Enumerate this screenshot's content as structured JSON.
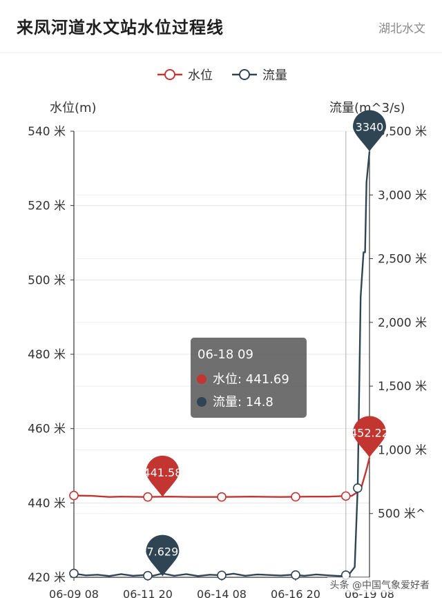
{
  "header": {
    "title": "来凤河道水文站水位过程线",
    "source": "湖北水文"
  },
  "watermark": "头条 @中国气象爱好者",
  "chart_data": {
    "type": "line",
    "legend": {
      "position": "top-center",
      "items": [
        "水位",
        "流量"
      ]
    },
    "y_left": {
      "name": "水位(m)",
      "range": [
        420,
        540
      ],
      "ticks": [
        420,
        440,
        460,
        480,
        500,
        520,
        540
      ],
      "tick_labels": [
        "420 米",
        "440 米",
        "460 米",
        "480 米",
        "500 米",
        "520 米",
        "540 米"
      ]
    },
    "y_right": {
      "name": "流量(m^3/s)",
      "range": [
        0,
        3500
      ],
      "ticks": [
        500,
        1000,
        1500,
        2000,
        2500,
        3000,
        3500
      ],
      "tick_labels": [
        "500 米^",
        "1,000 米",
        "1,500 米",
        "2,000 米",
        "2,500 米",
        "3,000 米",
        "3,500 米"
      ]
    },
    "x": {
      "tick_labels": [
        "06-09 08",
        "06-11 20",
        "06-14 08",
        "06-16 20",
        "06-19 08"
      ]
    },
    "series": [
      {
        "name": "水位",
        "color": "#c23531",
        "axis": "left",
        "points": [
          [
            0,
            442.0
          ],
          [
            0.6,
            441.9
          ],
          [
            1.2,
            441.6
          ],
          [
            1.6,
            441.7
          ],
          [
            2.4,
            441.6
          ],
          [
            3.2,
            441.7
          ],
          [
            4.0,
            441.6
          ],
          [
            5.0,
            441.6
          ],
          [
            6.0,
            441.7
          ],
          [
            7.0,
            441.6
          ],
          [
            8.0,
            441.7
          ],
          [
            8.6,
            441.7
          ],
          [
            9.0,
            441.8
          ],
          [
            9.4,
            441.9
          ],
          [
            9.7,
            443.5
          ],
          [
            9.9,
            449.0
          ],
          [
            10.0,
            452.2
          ]
        ],
        "markers_at": [
          0,
          2.5,
          5,
          7.5,
          9.2
        ]
      },
      {
        "name": "流量",
        "color": "#2f4554",
        "axis": "right",
        "points": [
          [
            0,
            30
          ],
          [
            0.4,
            15
          ],
          [
            0.8,
            20
          ],
          [
            1.2,
            10
          ],
          [
            1.6,
            25
          ],
          [
            2.0,
            12
          ],
          [
            2.4,
            18
          ],
          [
            2.6,
            7.6
          ],
          [
            3.0,
            30
          ],
          [
            3.4,
            12
          ],
          [
            3.8,
            25
          ],
          [
            4.2,
            10
          ],
          [
            4.6,
            20
          ],
          [
            5.0,
            15
          ],
          [
            5.4,
            28
          ],
          [
            5.8,
            12
          ],
          [
            6.2,
            22
          ],
          [
            6.6,
            18
          ],
          [
            7.0,
            14
          ],
          [
            7.4,
            20
          ],
          [
            7.8,
            12
          ],
          [
            8.2,
            22
          ],
          [
            8.6,
            15
          ],
          [
            9.0,
            10
          ],
          [
            9.3,
            20
          ],
          [
            9.5,
            80
          ],
          [
            9.6,
            700
          ],
          [
            9.7,
            2200
          ],
          [
            9.8,
            2550
          ],
          [
            9.85,
            2550
          ],
          [
            9.9,
            3100
          ],
          [
            10.0,
            3340
          ]
        ],
        "markers_at": [
          0,
          2.5,
          5,
          7.5,
          9.2,
          9.6
        ]
      }
    ],
    "markpoints": [
      {
        "series": "水位",
        "x": 3.0,
        "value": "441.58"
      },
      {
        "series": "水位",
        "x": 10.0,
        "value": "452.22"
      },
      {
        "series": "流量",
        "x": 3.0,
        "value": "7.629"
      },
      {
        "series": "流量",
        "x": 10.0,
        "value": "3340"
      }
    ],
    "tooltip": {
      "time": "06-18 09",
      "rows": [
        {
          "name": "水位",
          "value": "441.69"
        },
        {
          "name": "流量",
          "value": "14.8"
        }
      ],
      "x": 9.2
    }
  }
}
